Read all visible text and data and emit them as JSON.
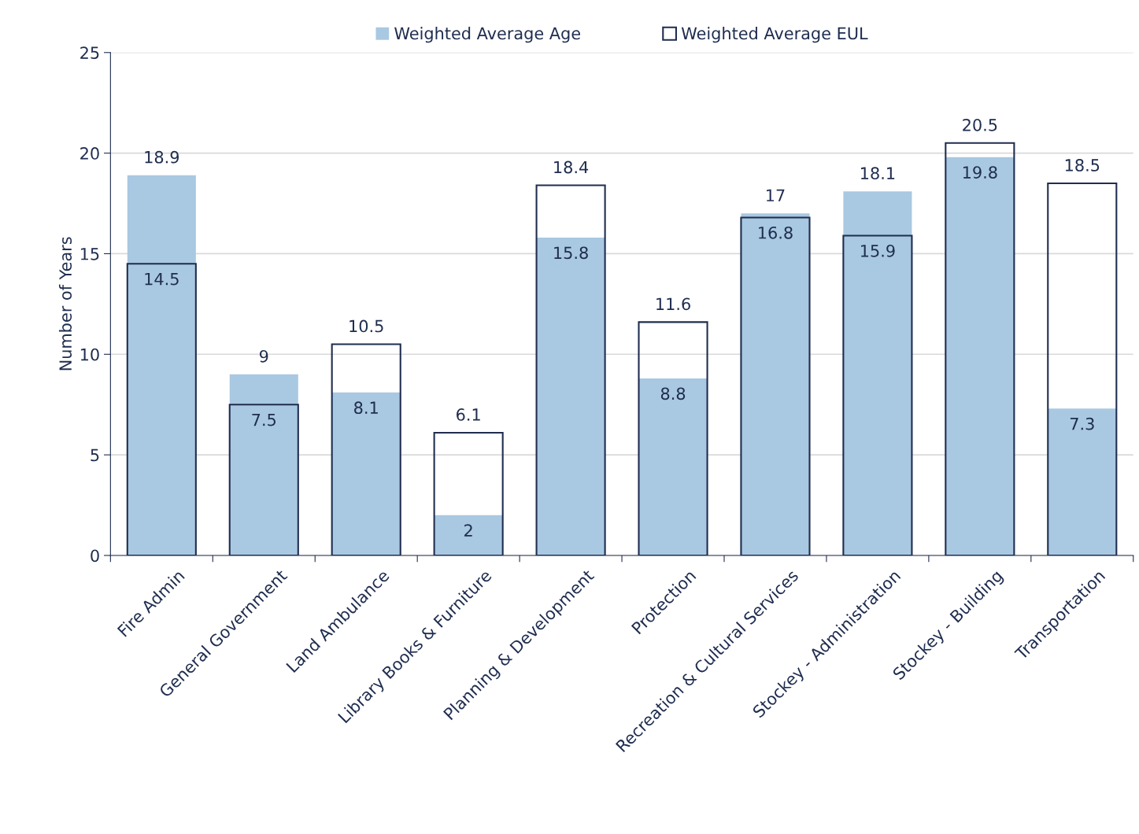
{
  "chart_data": {
    "type": "bar",
    "ylabel": "Number of Years",
    "categories": [
      "Fire Admin",
      "General Government",
      "Land Ambulance",
      "Library Books & Furniture",
      "Planning & Development",
      "Protection",
      "Recreation & Cultural Services",
      "Stockey - Administration",
      "Stockey - Building",
      "Transportation"
    ],
    "series": [
      {
        "name": "Weighted Average Age",
        "color": "#a9c8e1",
        "values": [
          18.9,
          9,
          8.1,
          2,
          15.8,
          8.8,
          17,
          18.1,
          19.8,
          7.3
        ]
      },
      {
        "name": "Weighted Average EUL",
        "color": "#1f2d4f",
        "line_style": "solid",
        "values": [
          14.5,
          7.5,
          10.5,
          6.1,
          18.4,
          11.6,
          16.8,
          15.9,
          20.5,
          18.5
        ]
      }
    ],
    "ylim": [
      0,
      25
    ],
    "yticks": [
      0,
      5,
      10,
      15,
      20,
      25
    ],
    "grid": "y",
    "legend": "top",
    "data_labels": true
  }
}
